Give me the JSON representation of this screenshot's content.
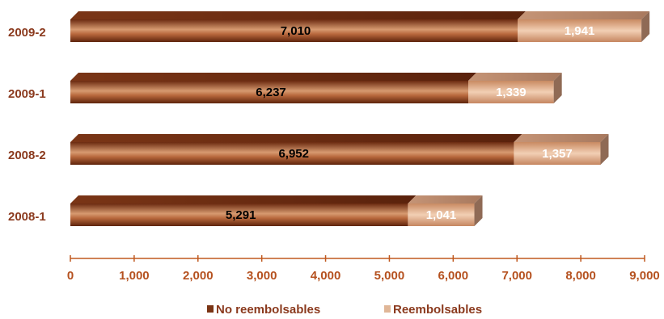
{
  "chart_data": {
    "type": "bar",
    "orientation": "horizontal",
    "stacked": true,
    "categories": [
      "2009-2",
      "2009-1",
      "2008-2",
      "2008-1"
    ],
    "series": [
      {
        "name": "No reembolsables",
        "values": [
          7010,
          6237,
          6952,
          5291
        ],
        "color": "#8b3e1c"
      },
      {
        "name": "Reembolsables",
        "values": [
          1941,
          1339,
          1357,
          1041
        ],
        "color": "#d9a27e"
      }
    ],
    "xlim": [
      0,
      9000
    ],
    "xticks": [
      "0",
      "1,000",
      "2,000",
      "3,000",
      "4,000",
      "5,000",
      "6,000",
      "7,000",
      "8,000",
      "9,000"
    ],
    "data_labels": [
      [
        "7,010",
        "6,237",
        "6,952",
        "5,291"
      ],
      [
        "1,941",
        "1,339",
        "1,357",
        "1,041"
      ]
    ],
    "legend_position": "bottom",
    "grid": false,
    "axis_color": "#c0581e"
  }
}
